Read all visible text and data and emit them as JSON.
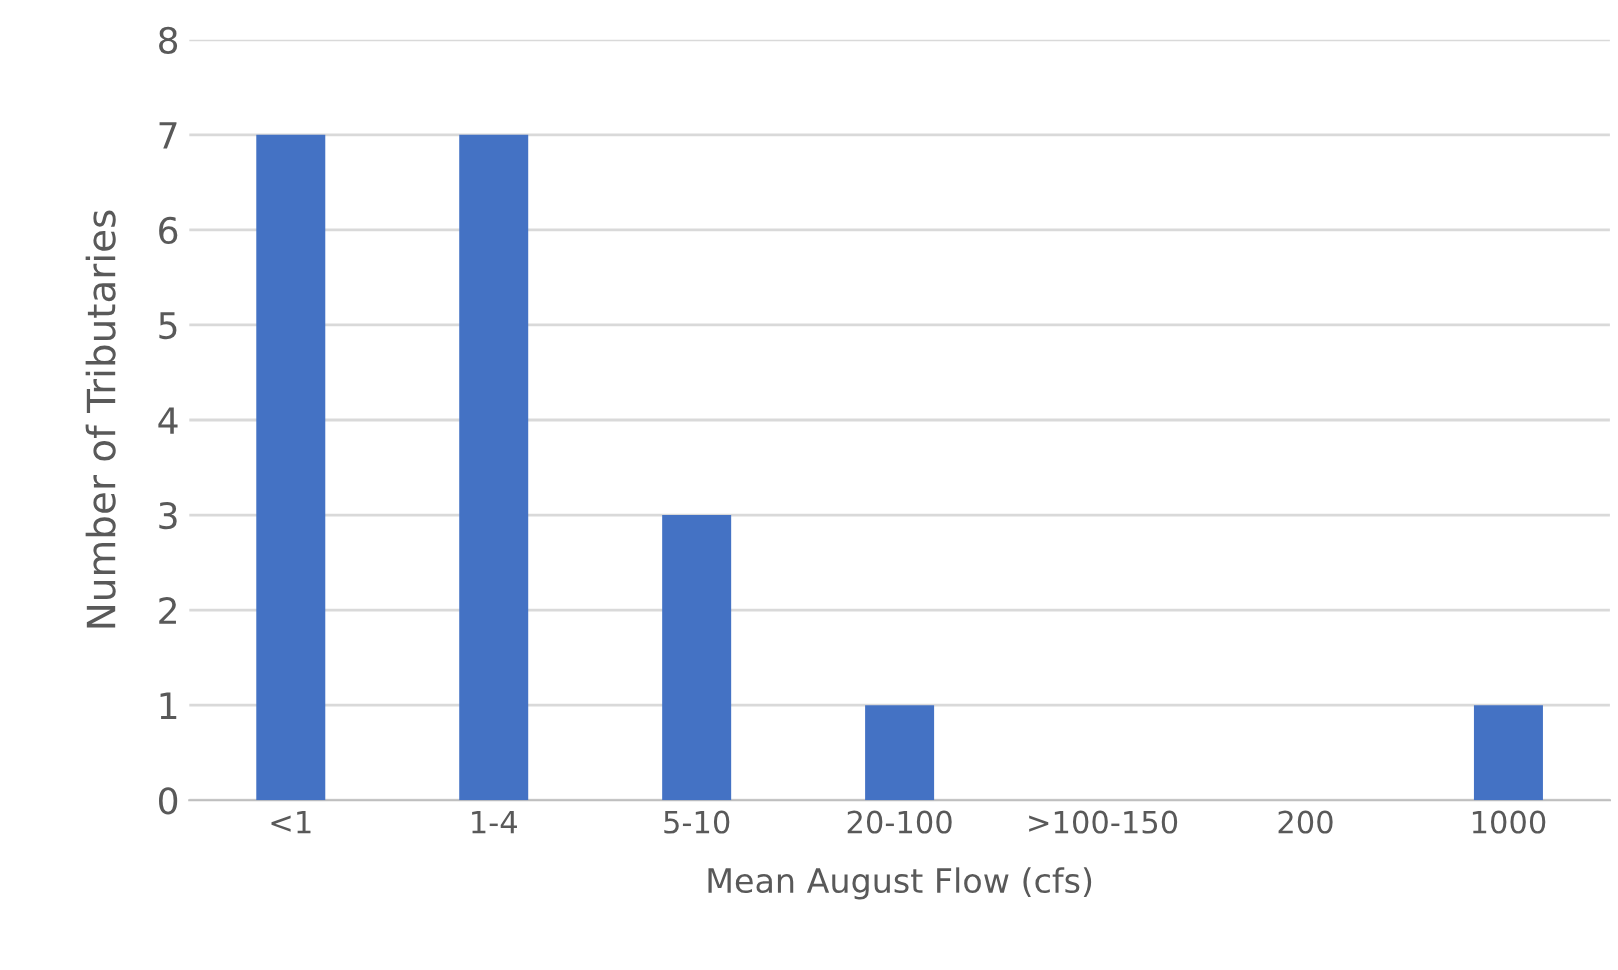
{
  "chart_data": {
    "type": "bar",
    "xlabel": "Mean August Flow (cfs)",
    "ylabel": "Number of Tributaries",
    "categories": [
      "<1",
      "1-4",
      "5-10",
      "20-100",
      ">100-150",
      "200",
      "1000"
    ],
    "values": [
      7,
      7,
      3,
      1,
      0,
      0,
      1
    ],
    "color": "#4472c4",
    "ylim": [
      0,
      8
    ],
    "yticks": [
      0,
      1,
      2,
      3,
      4,
      5,
      6,
      7,
      8
    ],
    "grid": "y"
  }
}
